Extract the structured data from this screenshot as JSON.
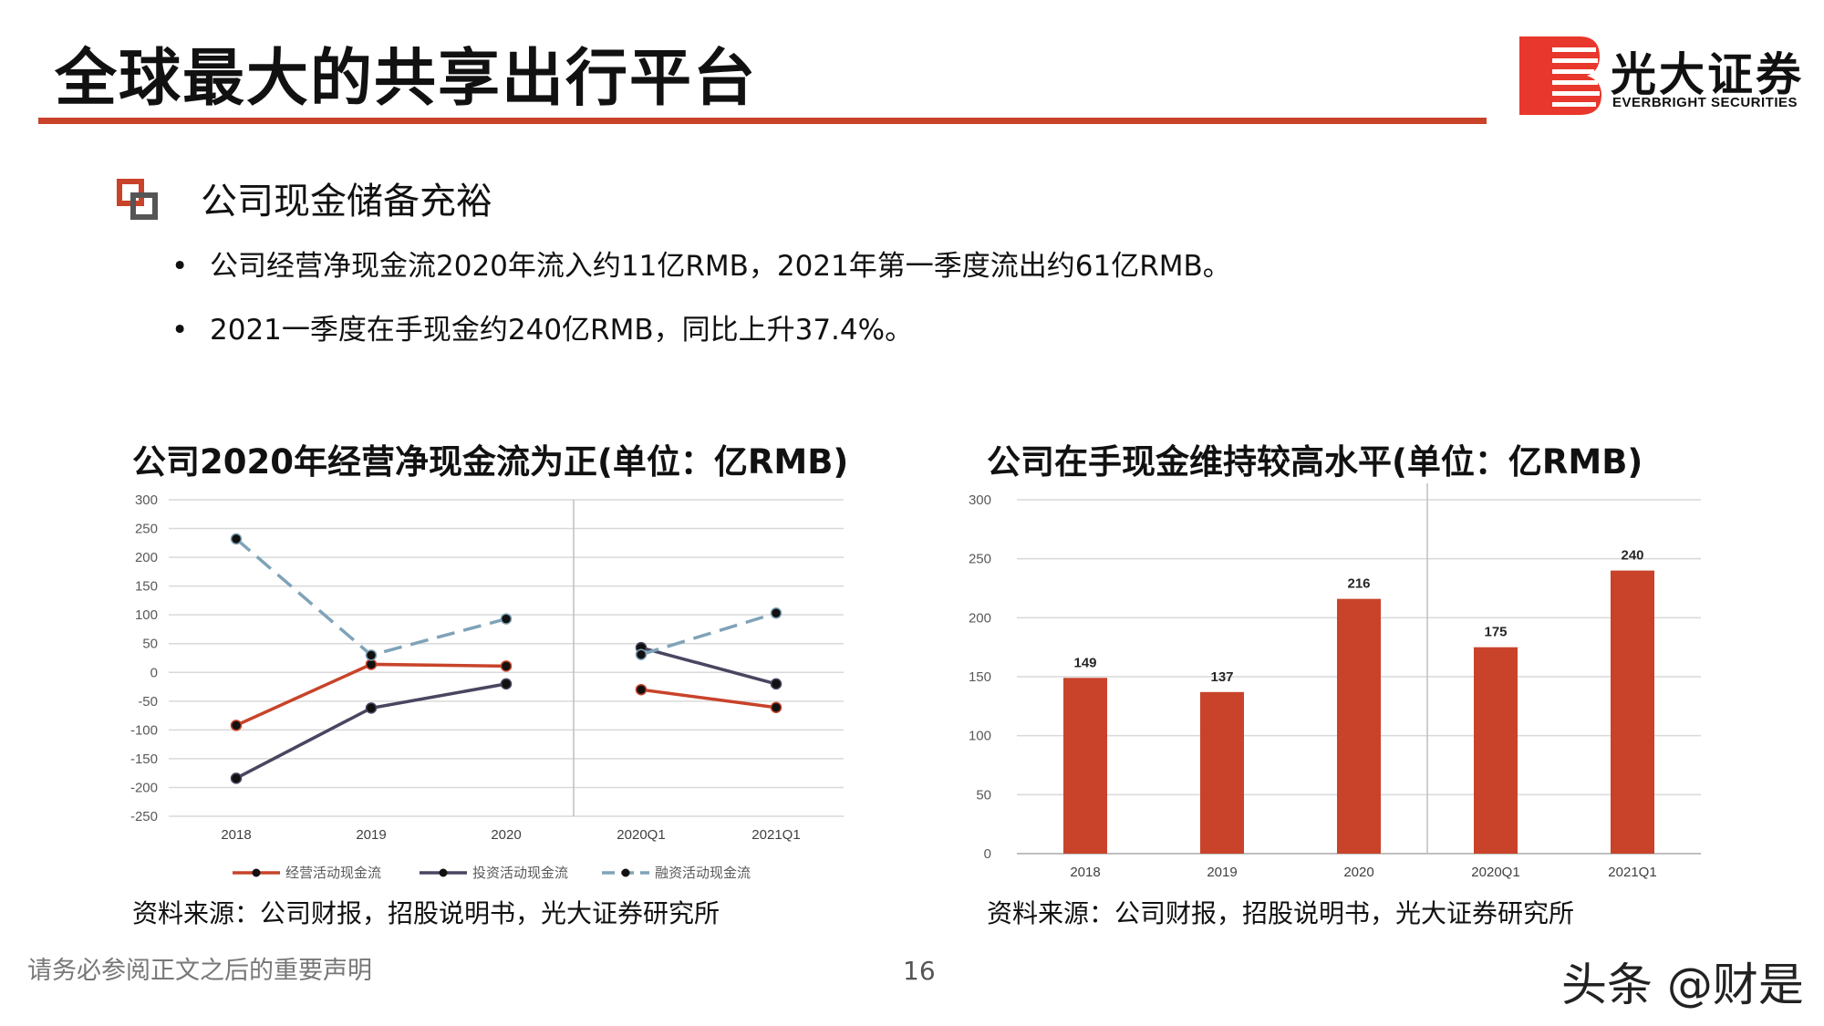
{
  "header": {
    "title": "全球最大的共享出行平台",
    "logo": {
      "cn": "光大证券",
      "en": "EVERBRIGHT SECURITIES"
    }
  },
  "section": {
    "heading": "公司现金储备充裕",
    "bullets": [
      "公司经营净现金流2020年流入约11亿RMB，2021年第一季度流出约61亿RMB。",
      "2021一季度在手现金约240亿RMB，同比上升37.4%。"
    ]
  },
  "left_chart": {
    "title": "公司2020年经营净现金流为正(单位：亿RMB)",
    "source": "资料来源：公司财报，招股说明书，光大证券研究所"
  },
  "right_chart": {
    "title": "公司在手现金维持较高水平(单位：亿RMB)",
    "source": "资料来源：公司财报，招股说明书，光大证券研究所"
  },
  "footer": {
    "disclaimer": "请务必参阅正文之后的重要声明",
    "page_number": "16",
    "watermark": "头条 @财是"
  },
  "colors": {
    "accent": "#c8432a",
    "operating": "#c8432a",
    "investing": "#4a4560",
    "financing": "#7fa3b8",
    "bar": "#c8432a"
  },
  "chart_data": [
    {
      "type": "line",
      "categories": [
        "2018",
        "2019",
        "2020",
        "2020Q1",
        "2021Q1"
      ],
      "ylim": [
        -250,
        300
      ],
      "yticks": [
        "300",
        "250",
        "200",
        "150",
        "100",
        "50",
        "0",
        "-50",
        "-100",
        "-150",
        "-200",
        "-250"
      ],
      "grid": true,
      "legend_position": "bottom",
      "series": [
        {
          "name": "经营活动现金流",
          "values": [
            -92,
            14,
            11,
            -30,
            -61
          ],
          "style": "solid",
          "color": "#c8432a"
        },
        {
          "name": "投资活动现金流",
          "values": [
            -184,
            -62,
            -20,
            43,
            -20
          ],
          "style": "solid",
          "color": "#4a4560"
        },
        {
          "name": "融资活动现金流",
          "values": [
            232,
            30,
            93,
            31,
            103
          ],
          "style": "dashed",
          "color": "#7fa3b8"
        }
      ],
      "divider_between": [
        "2020",
        "2020Q1"
      ]
    },
    {
      "type": "bar",
      "categories": [
        "2018",
        "2019",
        "2020",
        "2020Q1",
        "2021Q1"
      ],
      "values": [
        149,
        137,
        216,
        175,
        240
      ],
      "data_labels": [
        "149",
        "137",
        "216",
        "175",
        "240"
      ],
      "ylim": [
        0,
        300
      ],
      "yticks": [
        "300",
        "250",
        "200",
        "150",
        "100",
        "50",
        "0"
      ],
      "grid": true,
      "color": "#c8432a",
      "divider_between": [
        "2020",
        "2020Q1"
      ]
    }
  ]
}
